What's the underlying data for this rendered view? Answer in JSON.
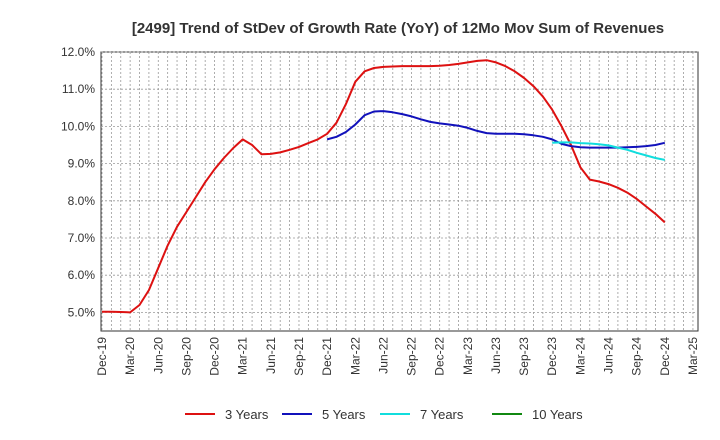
{
  "chart_data": {
    "type": "line",
    "title": "[2499]  Trend of StDev of Growth Rate (YoY) of 12Mo Mov Sum of Revenues",
    "xlabel": "",
    "ylabel": "",
    "x_ticks": [
      "Dec-19",
      "Mar-20",
      "Jun-20",
      "Sep-20",
      "Dec-20",
      "Mar-21",
      "Jun-21",
      "Sep-21",
      "Dec-21",
      "Mar-22",
      "Jun-22",
      "Sep-22",
      "Dec-22",
      "Mar-23",
      "Jun-23",
      "Sep-23",
      "Dec-23",
      "Mar-24",
      "Jun-24",
      "Sep-24",
      "Dec-24",
      "Mar-25"
    ],
    "y_ticks": [
      "5.0%",
      "6.0%",
      "7.0%",
      "8.0%",
      "9.0%",
      "10.0%",
      "11.0%",
      "12.0%"
    ],
    "ylim": [
      4.5,
      12.0
    ],
    "grid": true,
    "legend_position": "bottom",
    "series": [
      {
        "name": "3 Years",
        "color": "#dd1111",
        "start_index": 0,
        "values": [
          5.02,
          5.02,
          5.01,
          5.0,
          5.2,
          5.6,
          6.2,
          6.8,
          7.3,
          7.7,
          8.1,
          8.5,
          8.85,
          9.15,
          9.42,
          9.65,
          9.5,
          9.25,
          9.26,
          9.3,
          9.37,
          9.45,
          9.55,
          9.65,
          9.8,
          10.1,
          10.6,
          11.2,
          11.48,
          11.57,
          11.6,
          11.61,
          11.62,
          11.62,
          11.62,
          11.62,
          11.63,
          11.65,
          11.68,
          11.72,
          11.76,
          11.78,
          11.72,
          11.62,
          11.48,
          11.3,
          11.08,
          10.8,
          10.45,
          10.0,
          9.5,
          8.9,
          8.57,
          8.52,
          8.45,
          8.35,
          8.22,
          8.05,
          7.85,
          7.65,
          7.42
        ]
      },
      {
        "name": "5 Years",
        "color": "#1111bb",
        "start_index": 24,
        "values": [
          9.65,
          9.72,
          9.85,
          10.05,
          10.3,
          10.4,
          10.41,
          10.38,
          10.33,
          10.27,
          10.19,
          10.12,
          10.08,
          10.05,
          10.02,
          9.96,
          9.88,
          9.82,
          9.8,
          9.8,
          9.8,
          9.79,
          9.76,
          9.72,
          9.65,
          9.53,
          9.47,
          9.44,
          9.43,
          9.43,
          9.43,
          9.43,
          9.44,
          9.45,
          9.47,
          9.5,
          9.56
        ]
      },
      {
        "name": "7 Years",
        "color": "#11dddd",
        "start_index": 48,
        "values": [
          9.56,
          9.57,
          9.57,
          9.55,
          9.54,
          9.52,
          9.49,
          9.43,
          9.37,
          9.29,
          9.22,
          9.15,
          9.1
        ]
      },
      {
        "name": "10 Years",
        "color": "#118811",
        "start_index": 0,
        "values": []
      }
    ]
  }
}
